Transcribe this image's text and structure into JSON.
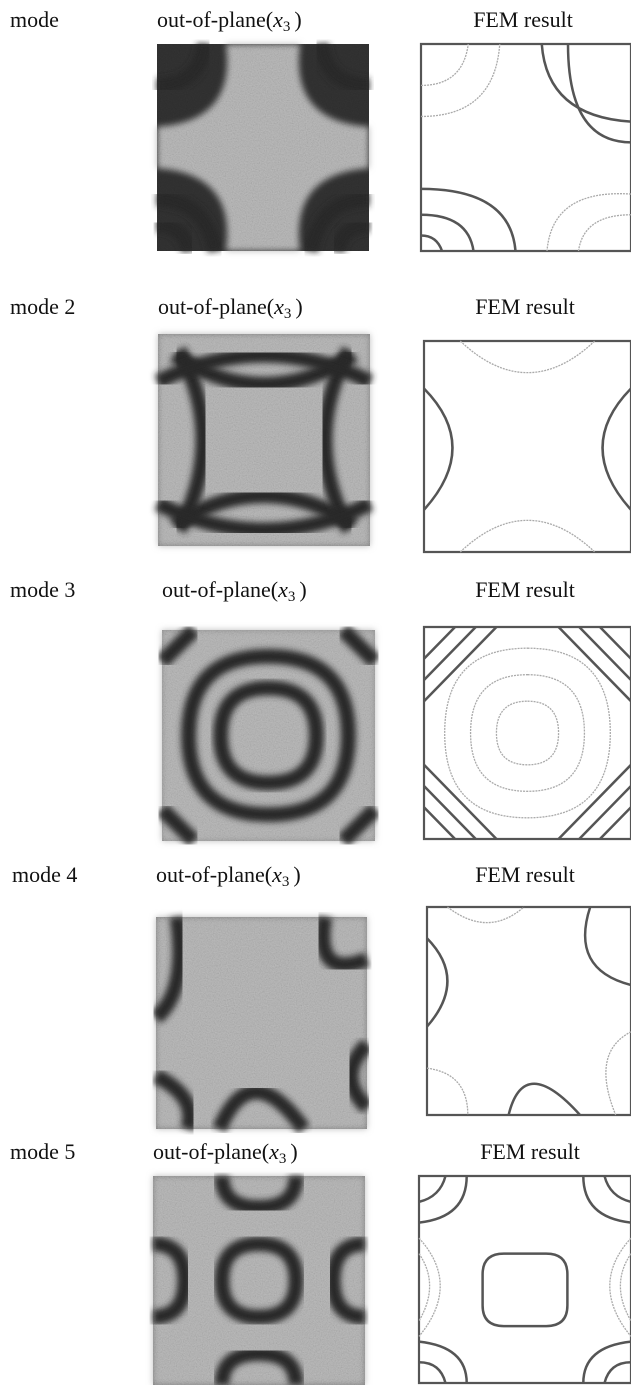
{
  "rows": [
    {
      "mode_label": "mode",
      "speckle_title": {
        "prefix": "out-of-plane(",
        "symbol": "x",
        "subscript": "3",
        "suffix": ")"
      },
      "fem_title": "FEM result"
    },
    {
      "mode_label": "mode 2",
      "speckle_title": {
        "prefix": "out-of-plane(",
        "symbol": "x",
        "subscript": "3",
        "suffix": ")"
      },
      "fem_title": "FEM result"
    },
    {
      "mode_label": "mode 3",
      "speckle_title": {
        "prefix": "out-of-plane(",
        "symbol": "x",
        "subscript": "3",
        "suffix": ")"
      },
      "fem_title": "FEM result"
    },
    {
      "mode_label": "mode 4",
      "speckle_title": {
        "prefix": "out-of-plane(",
        "symbol": "x",
        "subscript": "3",
        "suffix": ")"
      },
      "fem_title": "FEM result"
    },
    {
      "mode_label": "mode 5",
      "speckle_title": {
        "prefix": "out-of-plane(",
        "symbol": "x",
        "subscript": "3",
        "suffix": ")"
      },
      "fem_title": "FEM result"
    }
  ]
}
